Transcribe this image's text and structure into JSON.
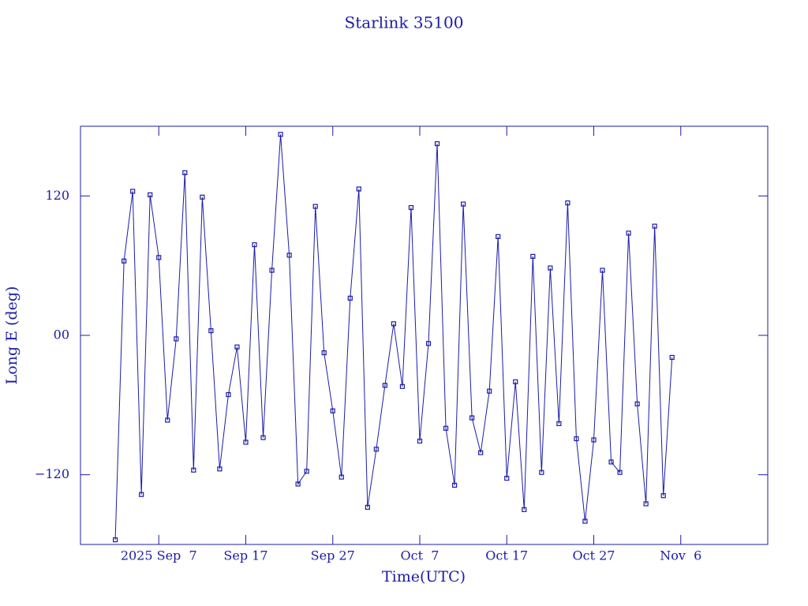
{
  "chart_data": {
    "type": "line",
    "title": "Starlink 35100",
    "x_label": "Time(UTC)",
    "y_label": "Long E (deg)",
    "x": [
      "2025-09-02",
      "2025-09-03",
      "2025-09-04",
      "2025-09-05",
      "2025-09-06",
      "2025-09-07",
      "2025-09-08",
      "2025-09-09",
      "2025-09-10",
      "2025-09-11",
      "2025-09-12",
      "2025-09-13",
      "2025-09-14",
      "2025-09-15",
      "2025-09-16",
      "2025-09-17",
      "2025-09-18",
      "2025-09-19",
      "2025-09-20",
      "2025-09-21",
      "2025-09-22",
      "2025-09-23",
      "2025-09-24",
      "2025-09-25",
      "2025-09-26",
      "2025-09-27",
      "2025-09-28",
      "2025-09-29",
      "2025-09-30",
      "2025-10-01",
      "2025-10-02",
      "2025-10-03",
      "2025-10-04",
      "2025-10-05",
      "2025-10-06",
      "2025-10-07",
      "2025-10-08",
      "2025-10-09",
      "2025-10-10",
      "2025-10-11",
      "2025-10-12",
      "2025-10-13",
      "2025-10-14",
      "2025-10-15",
      "2025-10-16",
      "2025-10-17",
      "2025-10-18",
      "2025-10-19",
      "2025-10-20",
      "2025-10-21",
      "2025-10-22",
      "2025-10-23",
      "2025-10-24",
      "2025-10-25",
      "2025-10-26",
      "2025-10-27",
      "2025-10-28",
      "2025-10-29",
      "2025-10-30",
      "2025-10-31",
      "2025-11-01",
      "2025-11-02",
      "2025-11-03",
      "2025-11-04",
      "2025-11-05"
    ],
    "series": [
      {
        "name": "Starlink 35100",
        "color": "#1c1ca8",
        "values": [
          -176,
          64,
          124,
          -137,
          121,
          67,
          -73,
          -3,
          140,
          -116,
          119,
          4,
          -115,
          -51,
          -10,
          -92,
          78,
          -88,
          56,
          173,
          69,
          -128,
          -117,
          111,
          -15,
          -65,
          -122,
          32,
          126,
          -148,
          -98,
          -43,
          10,
          -44,
          110,
          -91,
          -7,
          165,
          -80,
          -129,
          113,
          -71,
          -101,
          -48,
          85,
          -123,
          -40,
          -150,
          68,
          -118,
          58,
          -76,
          114,
          -89,
          -160,
          -90,
          56,
          -109,
          -118,
          88,
          -59,
          -145,
          94,
          -138,
          -19
        ]
      }
    ],
    "xlim": [
      "2025-08-29",
      "2025-11-16"
    ],
    "xticks": [
      {
        "value": "2025-09-07",
        "label": "2025 Sep  7"
      },
      {
        "value": "2025-09-17",
        "label": "Sep 17"
      },
      {
        "value": "2025-09-27",
        "label": "Sep 27"
      },
      {
        "value": "2025-10-07",
        "label": "Oct  7"
      },
      {
        "value": "2025-10-17",
        "label": "Oct 17"
      },
      {
        "value": "2025-10-27",
        "label": "Oct 27"
      },
      {
        "value": "2025-11-06",
        "label": "Nov  6"
      }
    ],
    "ylim": [
      -180,
      180
    ],
    "yticks": [
      {
        "value": -120,
        "label": "−120"
      },
      {
        "value": 0,
        "label": "00"
      },
      120
    ],
    "axis_color": "#1c1ca8"
  }
}
